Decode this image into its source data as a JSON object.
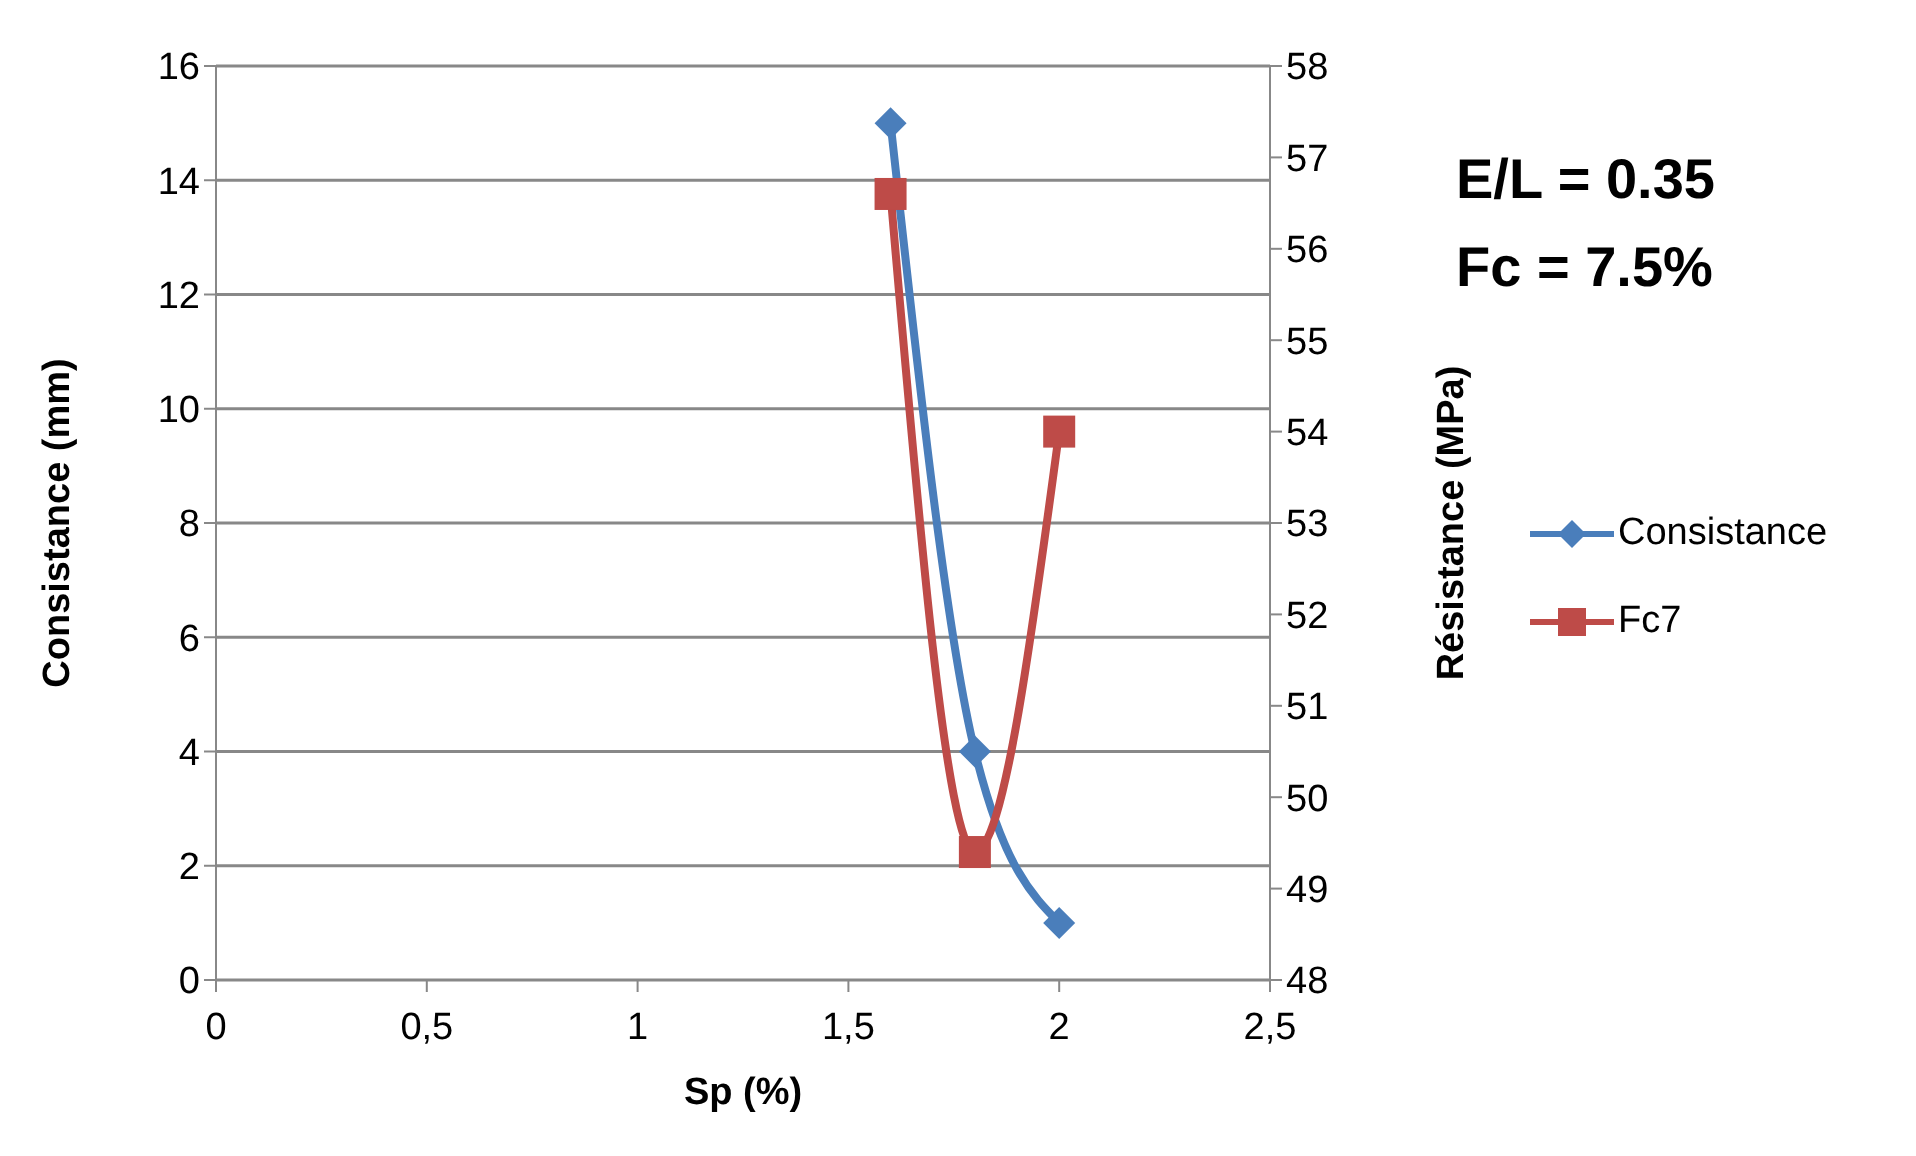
{
  "chart_data": {
    "type": "line",
    "x": [
      1.6,
      1.8,
      2
    ],
    "series": [
      {
        "name": "Consistance",
        "color": "#4a7ebb",
        "values": [
          15,
          4,
          1
        ],
        "marker": "diamond"
      },
      {
        "name": "Fc7",
        "color": "#be4b48",
        "values": [
          56.6,
          49.4,
          54.0
        ],
        "marker": "square",
        "axis": "y2"
      }
    ],
    "xlabel": "Sp (%)",
    "ylabel": "Consistance (mm)",
    "y2label": "Résistance (MPa)",
    "xlim": [
      0,
      2.5
    ],
    "xticks": [
      {
        "value": 0,
        "label": "0"
      },
      {
        "value": 0.5,
        "label": "0,5"
      },
      {
        "value": 1,
        "label": "1"
      },
      {
        "value": 1.5,
        "label": "1,5"
      },
      {
        "value": 2,
        "label": "2"
      },
      {
        "value": 2.5,
        "label": "2,5"
      }
    ],
    "ylim": [
      0,
      16
    ],
    "yticks": [
      0,
      2,
      4,
      6,
      8,
      10,
      12,
      14,
      16
    ],
    "y2lim": [
      48,
      58
    ],
    "y2ticks": [
      48,
      49,
      50,
      51,
      52,
      53,
      54,
      55,
      56,
      57,
      58
    ],
    "grid": "y",
    "legend": "right",
    "annotations": [
      "E/L = 0.35",
      "Fc = 7.5%"
    ]
  }
}
